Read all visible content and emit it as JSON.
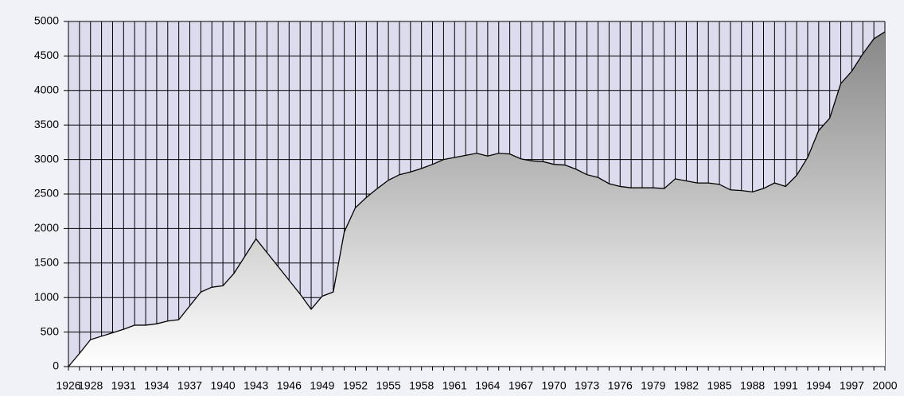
{
  "chart_data": {
    "type": "area",
    "x": [
      1926,
      1927,
      1928,
      1929,
      1930,
      1931,
      1932,
      1933,
      1934,
      1935,
      1936,
      1937,
      1938,
      1939,
      1940,
      1941,
      1942,
      1943,
      1944,
      1945,
      1946,
      1947,
      1948,
      1949,
      1950,
      1951,
      1952,
      1953,
      1954,
      1955,
      1956,
      1957,
      1958,
      1959,
      1960,
      1961,
      1962,
      1963,
      1964,
      1965,
      1966,
      1967,
      1968,
      1969,
      1970,
      1971,
      1972,
      1973,
      1974,
      1975,
      1976,
      1977,
      1978,
      1979,
      1980,
      1981,
      1982,
      1983,
      1984,
      1985,
      1986,
      1987,
      1988,
      1989,
      1990,
      1991,
      1992,
      1993,
      1994,
      1995,
      1996,
      1997,
      1998,
      1999,
      2000
    ],
    "values": [
      0,
      190,
      390,
      440,
      490,
      540,
      600,
      600,
      620,
      660,
      680,
      880,
      1080,
      1150,
      1170,
      1350,
      1600,
      1850,
      1650,
      1450,
      1250,
      1050,
      830,
      1020,
      1080,
      1950,
      2300,
      2450,
      2580,
      2700,
      2780,
      2820,
      2870,
      2930,
      3000,
      3030,
      3060,
      3090,
      3050,
      3090,
      3080,
      3010,
      2980,
      2970,
      2930,
      2920,
      2860,
      2780,
      2740,
      2650,
      2610,
      2590,
      2590,
      2590,
      2580,
      2720,
      2690,
      2660,
      2660,
      2640,
      2560,
      2550,
      2530,
      2580,
      2660,
      2610,
      2770,
      3030,
      3420,
      3600,
      4100,
      4280,
      4530,
      4750,
      4850
    ],
    "xlim": [
      1926,
      2000
    ],
    "xticks": [
      1926,
      1928,
      1931,
      1934,
      1937,
      1940,
      1943,
      1946,
      1949,
      1952,
      1955,
      1958,
      1961,
      1964,
      1967,
      1970,
      1973,
      1976,
      1979,
      1982,
      1985,
      1988,
      1991,
      1994,
      1997,
      2000
    ],
    "ylim": [
      0,
      5000
    ],
    "yticks": [
      0,
      500,
      1000,
      1500,
      2000,
      2500,
      3000,
      3500,
      4000,
      4500,
      5000
    ],
    "grid": true,
    "color": "#000000",
    "plot_background": "#dddbee"
  }
}
